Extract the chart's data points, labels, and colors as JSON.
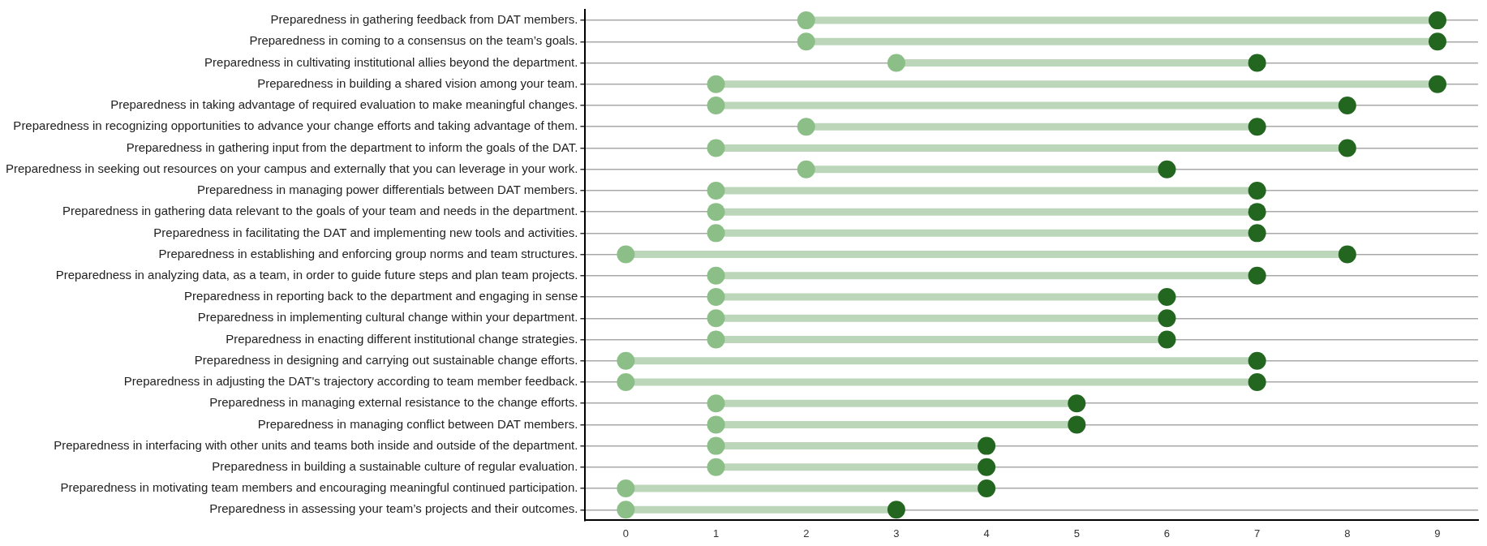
{
  "chart_data": {
    "type": "scatter",
    "orientation": "horizontal",
    "grid": "y",
    "marker": "circle",
    "categories": [
      "Preparedness in gathering feedback from DAT members.",
      "Preparedness in coming to a consensus on the team’s goals.",
      "Preparedness in cultivating institutional allies beyond the department.",
      "Preparedness in building a shared vision among your team.",
      "Preparedness in taking advantage of required evaluation to make meaningful changes.",
      "Preparedness in recognizing opportunities to advance your change efforts and taking advantage of them.",
      "Preparedness in gathering input from the department to inform the goals of the DAT.",
      "Preparedness in seeking out resources on your campus and externally that you can leverage in your work.",
      "Preparedness in managing power differentials between DAT members.",
      "Preparedness in gathering data relevant to the goals of your team and needs in the department.",
      "Preparedness in facilitating the DAT and implementing new tools and activities.",
      "Preparedness in establishing and enforcing group norms and team structures.",
      "Preparedness in analyzing data, as a team, in order to guide future steps and plan team projects.",
      "Preparedness in reporting back to the department and engaging in sense",
      "Preparedness in implementing cultural change within your department.",
      "Preparedness in enacting different institutional change strategies.",
      "Preparedness in designing and carrying out sustainable change efforts.",
      "Preparedness in adjusting the DAT's trajectory according to team member feedback.",
      "Preparedness in managing external resistance to the change efforts.",
      "Preparedness in managing conflict between DAT members.",
      "Preparedness in interfacing with other units and teams both inside and outside of the department.",
      "Preparedness in building a sustainable culture of regular evaluation.",
      "Preparedness in motivating team members and encouraging meaningful continued participation.",
      "Preparedness in assessing your team’s projects and their outcomes."
    ],
    "series": [
      {
        "type": "scatter",
        "color": "#8bbf87",
        "values": [
          2,
          2,
          3,
          1,
          1,
          2,
          1,
          2,
          1,
          1,
          1,
          0,
          1,
          1,
          1,
          1,
          0,
          0,
          1,
          1,
          1,
          1,
          0,
          0
        ]
      },
      {
        "type": "scatter",
        "color": "#22661f",
        "values": [
          9,
          9,
          7,
          9,
          8,
          7,
          8,
          6,
          7,
          7,
          7,
          8,
          7,
          6,
          6,
          6,
          7,
          7,
          5,
          5,
          4,
          4,
          4,
          3
        ]
      }
    ],
    "xlim": [
      -0.45,
      9.45
    ],
    "xticks": [
      0,
      1,
      2,
      3,
      4,
      5,
      6,
      7,
      8,
      9
    ]
  }
}
